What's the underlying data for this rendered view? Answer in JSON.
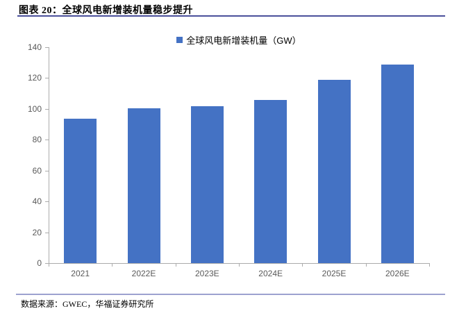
{
  "figure": {
    "title": "图表 20：全球风电新增装机量稳步提升",
    "source": "数据来源：GWEC，华福证券研究所"
  },
  "legend": {
    "label": "全球风电新增装机量（GW）"
  },
  "chart_data": {
    "type": "bar",
    "title": "全球风电新增装机量（GW）",
    "categories": [
      "2021",
      "2022E",
      "2023E",
      "2024E",
      "2025E",
      "2026E"
    ],
    "values": [
      93.6,
      100.6,
      101.9,
      105.9,
      118.8,
      128.8
    ],
    "series_name": "全球风电新增装机量（GW）",
    "xlabel": "",
    "ylabel": "",
    "ylim": [
      0,
      140
    ],
    "ytick_step": 20,
    "grid": false,
    "legend_position": "top-center"
  },
  "colors": {
    "bar": "#4472C4",
    "axis": "#ABABAB",
    "tick_label": "#595959",
    "title_rule": "#4A4F9B",
    "source_rule": "#9CA1CF"
  }
}
